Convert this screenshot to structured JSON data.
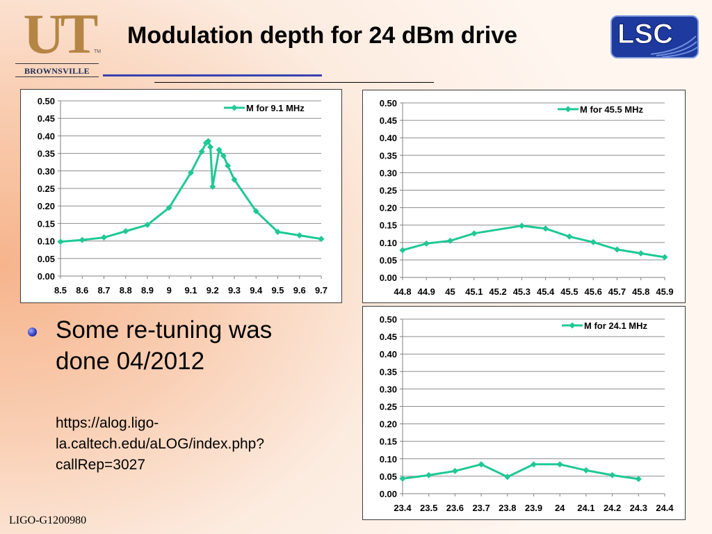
{
  "slide_title": "Modulation depth for 24 dBm drive",
  "logos": {
    "left": {
      "letters": "UT",
      "tm": "TM",
      "subtitle": "BROWNSVILLE"
    },
    "right": {
      "text": "LSC"
    }
  },
  "bullet": {
    "text": "Some re-tuning was done 04/2012",
    "link": "https://alog.ligo-la.caltech.edu/aLOG/index.php?callRep=3027"
  },
  "footer": "LIGO-G1200980",
  "colors": {
    "series": "#1ec896",
    "grid": "#8c8c8c",
    "title_blue_rule": "#3a40b0",
    "lsc_blue": "#1e3a9e"
  },
  "chart_data": [
    {
      "type": "line",
      "series": [
        {
          "name": "M for 9.1 MHz",
          "x": [
            8.5,
            8.6,
            8.7,
            8.8,
            8.9,
            9.0,
            9.1,
            9.15,
            9.17,
            9.18,
            9.19,
            9.2,
            9.23,
            9.25,
            9.27,
            9.3,
            9.4,
            9.5,
            9.6,
            9.7
          ],
          "y": [
            0.098,
            0.103,
            0.11,
            0.128,
            0.146,
            0.195,
            0.295,
            0.355,
            0.38,
            0.385,
            0.368,
            0.255,
            0.36,
            0.343,
            0.315,
            0.275,
            0.185,
            0.126,
            0.116,
            0.106
          ]
        }
      ],
      "x_ticks": [
        "8.5",
        "8.6",
        "8.7",
        "8.8",
        "8.9",
        "9",
        "9.1",
        "9.2",
        "9.3",
        "9.4",
        "9.5",
        "9.6",
        "9.7"
      ],
      "y_ticks": [
        "0.00",
        "0.05",
        "0.10",
        "0.15",
        "0.20",
        "0.25",
        "0.30",
        "0.35",
        "0.40",
        "0.45",
        "0.50"
      ],
      "xlim": [
        8.5,
        9.7
      ],
      "ylim": [
        0,
        0.5
      ],
      "grid": true,
      "legend_position": "top-right"
    },
    {
      "type": "line",
      "series": [
        {
          "name": "M for 45.5 MHz",
          "x": [
            44.8,
            44.9,
            45.0,
            45.1,
            45.3,
            45.4,
            45.5,
            45.6,
            45.7,
            45.8,
            45.9
          ],
          "y": [
            0.078,
            0.097,
            0.105,
            0.126,
            0.148,
            0.14,
            0.117,
            0.101,
            0.08,
            0.069,
            0.058
          ]
        }
      ],
      "x_ticks": [
        "44.8",
        "44.9",
        "45",
        "45.1",
        "45.2",
        "45.3",
        "45.4",
        "45.5",
        "45.6",
        "45.7",
        "45.8",
        "45.9"
      ],
      "y_ticks": [
        "0.00",
        "0.05",
        "0.10",
        "0.15",
        "0.20",
        "0.25",
        "0.30",
        "0.35",
        "0.40",
        "0.45",
        "0.50"
      ],
      "xlim": [
        44.8,
        45.9
      ],
      "ylim": [
        0,
        0.5
      ],
      "grid": true,
      "legend_position": "top-right"
    },
    {
      "type": "line",
      "series": [
        {
          "name": "M for 24.1 MHz",
          "x": [
            23.4,
            23.5,
            23.6,
            23.7,
            23.8,
            23.9,
            24.0,
            24.1,
            24.2,
            24.3
          ],
          "y": [
            0.043,
            0.053,
            0.065,
            0.084,
            0.048,
            0.084,
            0.084,
            0.067,
            0.053,
            0.042
          ]
        }
      ],
      "x_ticks": [
        "23.4",
        "23.5",
        "23.6",
        "23.7",
        "23.8",
        "23.9",
        "24",
        "24.1",
        "24.2",
        "24.3",
        "24.4"
      ],
      "y_ticks": [
        "0.00",
        "0.05",
        "0.10",
        "0.15",
        "0.20",
        "0.25",
        "0.30",
        "0.35",
        "0.40",
        "0.45",
        "0.50"
      ],
      "xlim": [
        23.4,
        24.4
      ],
      "ylim": [
        0,
        0.5
      ],
      "grid": true,
      "legend_position": "top-right"
    }
  ]
}
